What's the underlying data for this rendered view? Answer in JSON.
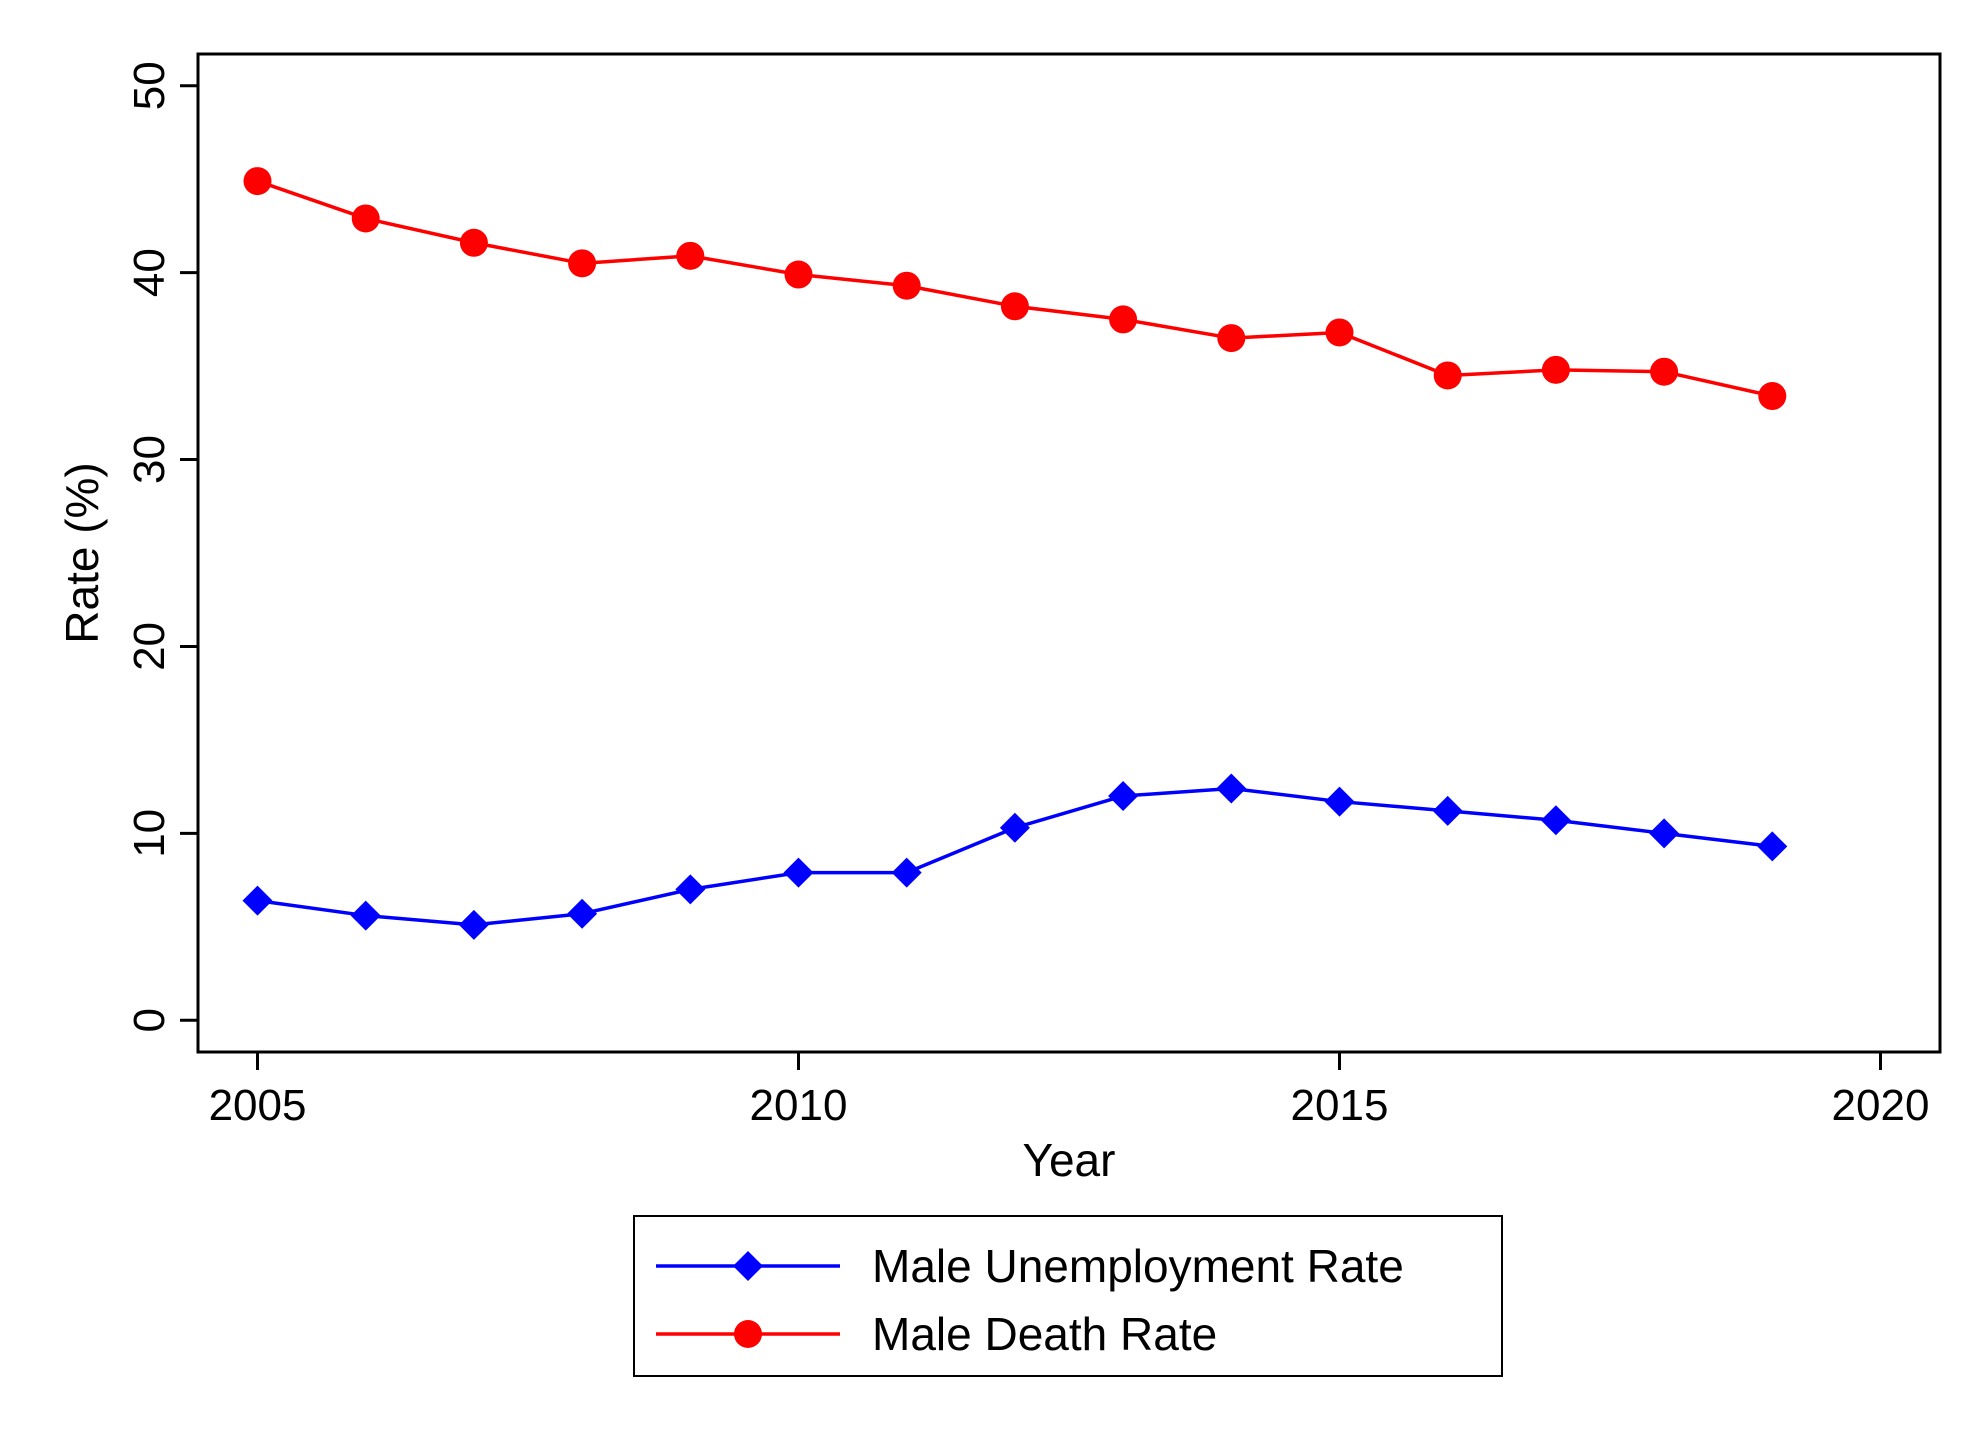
{
  "chart_data": {
    "type": "line",
    "xlabel": "Year",
    "ylabel": "Rate (%)",
    "xlim": [
      2004.45,
      2020.55
    ],
    "ylim": [
      -1.7,
      51.7
    ],
    "x_ticks": [
      2005,
      2010,
      2015,
      2020
    ],
    "y_ticks": [
      0,
      10,
      20,
      30,
      40,
      50
    ],
    "grid": false,
    "legend_position": "bottom",
    "x": [
      2005,
      2006,
      2007,
      2008,
      2009,
      2010,
      2011,
      2012,
      2013,
      2014,
      2015,
      2016,
      2017,
      2018,
      2019
    ],
    "series": [
      {
        "name": "Male Unemployment Rate",
        "color": "#0000ff",
        "marker": "diamond",
        "values": [
          6.4,
          5.6,
          5.1,
          5.7,
          7.0,
          7.9,
          7.9,
          10.3,
          12.0,
          12.4,
          11.7,
          11.2,
          10.7,
          10.0,
          9.3
        ]
      },
      {
        "name": "Male Death Rate",
        "color": "#ff0000",
        "marker": "circle",
        "values": [
          44.9,
          42.9,
          41.6,
          40.5,
          40.9,
          39.9,
          39.3,
          38.2,
          37.5,
          36.5,
          36.8,
          34.5,
          34.8,
          34.7,
          33.4
        ]
      }
    ]
  }
}
